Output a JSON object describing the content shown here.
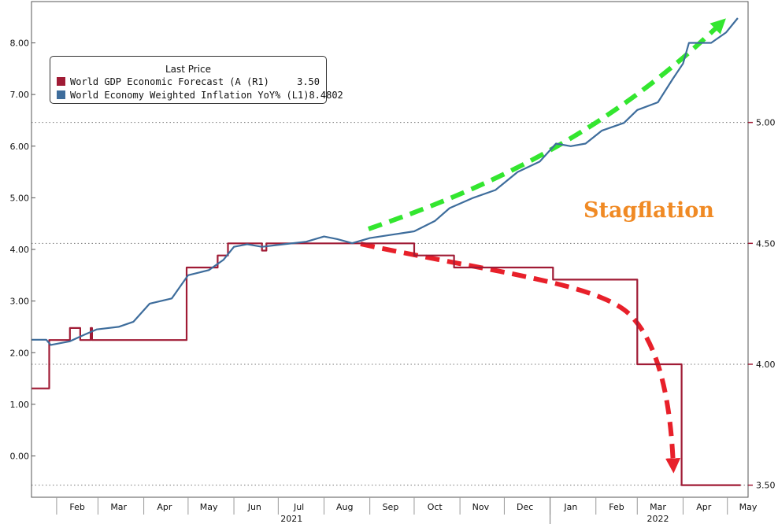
{
  "chart_data": {
    "type": "line",
    "legend": {
      "title": "Last Price",
      "placement": "top-left",
      "entries": [
        {
          "name": "World GDP Economic Forecast (A  (R1)",
          "value": "3.50",
          "color": "#a01b35"
        },
        {
          "name": "World Economy Weighted Inflation YoY%  (L1)",
          "value": "8.4802",
          "color": "#3e6d9c"
        }
      ]
    },
    "annotation": {
      "text": "Stagflation",
      "color": "#f08a24"
    },
    "x_axis": {
      "months": [
        "Feb",
        "Mar",
        "Apr",
        "May",
        "Jun",
        "Jul",
        "Aug",
        "Sep",
        "Oct",
        "Nov",
        "Dec",
        "Jan",
        "Feb",
        "Mar",
        "Apr",
        "May"
      ],
      "years": [
        "2021",
        "2022"
      ],
      "range": [
        "2021-01-15",
        "2022-05-15"
      ]
    },
    "y_left": {
      "ticks": [
        "0.00",
        "1.00",
        "2.00",
        "3.00",
        "4.00",
        "5.00",
        "6.00",
        "7.00",
        "8.00"
      ],
      "ylim": [
        -0.8,
        8.8
      ]
    },
    "y_right": {
      "ticks": [
        "3.50",
        "4.00",
        "4.50",
        "5.00"
      ],
      "ylim": [
        3.45,
        5.5
      ]
    },
    "grid": "dotted at right-axis ticks",
    "series": [
      {
        "name": "World GDP Economic Forecast (A  (R1)",
        "axis": "right",
        "color": "#a01b35",
        "step": true,
        "points": [
          [
            "2021-01-15",
            3.9
          ],
          [
            "2021-01-27",
            3.9
          ],
          [
            "2021-01-27",
            4.1
          ],
          [
            "2021-02-10",
            4.1
          ],
          [
            "2021-02-10",
            4.15
          ],
          [
            "2021-02-17",
            4.15
          ],
          [
            "2021-02-17",
            4.1
          ],
          [
            "2021-02-24",
            4.1
          ],
          [
            "2021-02-24",
            4.15
          ],
          [
            "2021-02-25",
            4.15
          ],
          [
            "2021-02-25",
            4.1
          ],
          [
            "2021-04-30",
            4.1
          ],
          [
            "2021-04-30",
            4.4
          ],
          [
            "2021-05-21",
            4.4
          ],
          [
            "2021-05-21",
            4.45
          ],
          [
            "2021-05-28",
            4.45
          ],
          [
            "2021-05-28",
            4.5
          ],
          [
            "2021-06-20",
            4.5
          ],
          [
            "2021-06-20",
            4.47
          ],
          [
            "2021-06-23",
            4.47
          ],
          [
            "2021-06-23",
            4.5
          ],
          [
            "2021-10-01",
            4.5
          ],
          [
            "2021-10-01",
            4.45
          ],
          [
            "2021-10-28",
            4.45
          ],
          [
            "2021-10-28",
            4.4
          ],
          [
            "2022-01-03",
            4.4
          ],
          [
            "2022-01-03",
            4.35
          ],
          [
            "2022-03-01",
            4.35
          ],
          [
            "2022-03-01",
            4.0
          ],
          [
            "2022-03-31",
            4.0
          ],
          [
            "2022-03-31",
            3.5
          ],
          [
            "2022-05-10",
            3.5
          ]
        ]
      },
      {
        "name": "World Economy Weighted Inflation YoY%  (L1)",
        "axis": "left",
        "color": "#3e6d9c",
        "step": false,
        "points": [
          [
            "2021-01-15",
            2.25
          ],
          [
            "2021-01-25",
            2.25
          ],
          [
            "2021-01-28",
            2.15
          ],
          [
            "2021-02-10",
            2.22
          ],
          [
            "2021-02-20",
            2.35
          ],
          [
            "2021-02-28",
            2.45
          ],
          [
            "2021-03-15",
            2.5
          ],
          [
            "2021-03-25",
            2.6
          ],
          [
            "2021-04-05",
            2.95
          ],
          [
            "2021-04-20",
            3.05
          ],
          [
            "2021-05-01",
            3.5
          ],
          [
            "2021-05-15",
            3.6
          ],
          [
            "2021-05-25",
            3.8
          ],
          [
            "2021-06-01",
            4.05
          ],
          [
            "2021-06-10",
            4.1
          ],
          [
            "2021-06-20",
            4.05
          ],
          [
            "2021-07-05",
            4.1
          ],
          [
            "2021-07-20",
            4.15
          ],
          [
            "2021-08-01",
            4.25
          ],
          [
            "2021-08-10",
            4.2
          ],
          [
            "2021-08-20",
            4.12
          ],
          [
            "2021-09-01",
            4.22
          ],
          [
            "2021-09-15",
            4.28
          ],
          [
            "2021-10-01",
            4.35
          ],
          [
            "2021-10-15",
            4.55
          ],
          [
            "2021-10-25",
            4.8
          ],
          [
            "2021-11-10",
            5.0
          ],
          [
            "2021-11-25",
            5.15
          ],
          [
            "2021-12-10",
            5.5
          ],
          [
            "2021-12-25",
            5.7
          ],
          [
            "2022-01-05",
            6.05
          ],
          [
            "2022-01-15",
            6.0
          ],
          [
            "2022-01-25",
            6.05
          ],
          [
            "2022-02-05",
            6.3
          ],
          [
            "2022-02-20",
            6.45
          ],
          [
            "2022-03-01",
            6.7
          ],
          [
            "2022-03-15",
            6.85
          ],
          [
            "2022-03-25",
            7.3
          ],
          [
            "2022-04-01",
            7.6
          ],
          [
            "2022-04-05",
            8.0
          ],
          [
            "2022-04-20",
            8.0
          ],
          [
            "2022-04-30",
            8.2
          ],
          [
            "2022-05-08",
            8.48
          ]
        ]
      }
    ]
  }
}
